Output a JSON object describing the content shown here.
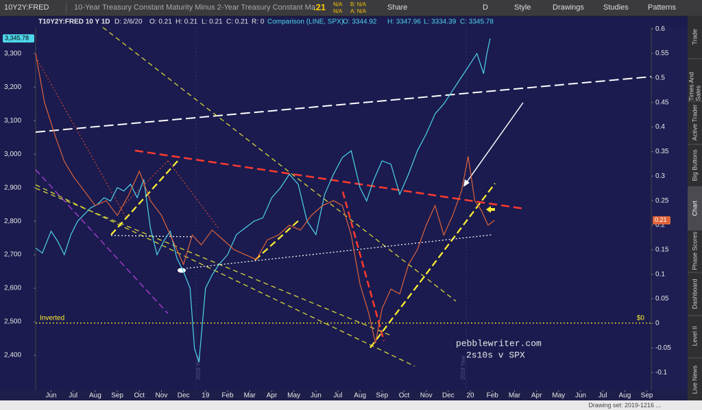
{
  "toolbar": {
    "symbol": "10Y2Y:FRED",
    "description": "10-Year Treasury Constant Maturity Minus 2-Year Treasury Constant Ma...",
    "last": ".21",
    "change1": "N/A",
    "change2": "N/A",
    "bid": "B: N/A",
    "ask": "A: N/A",
    "share": "Share",
    "period": "D",
    "style": "Style",
    "drawings": "Drawings",
    "studies": "Studies",
    "patterns": "Patterns"
  },
  "info_bar": {
    "symbol": "T10Y2Y:FRED 10 Y 1D",
    "date": "D: 2/6/20",
    "open": "O: 0.21",
    "high": "H: 0.21",
    "low": "L: 0.21",
    "close": "C: 0.21",
    "range": "R: 0",
    "comparison": "Comparison (LINE, SPX)",
    "cmp_open": "O: 3344.92",
    "cmp_high": "H: 3347.96",
    "cmp_low": "L: 3334.39",
    "cmp_close": "C: 3345.78"
  },
  "sidebar": [
    "Trade",
    "Times And Sales",
    "Active Trader",
    "Big Buttons",
    "Chart",
    "Phase Scores",
    "Dashboard",
    "Level II",
    "Live News"
  ],
  "status": "Drawing set: 2019-1216 ...",
  "chart_data": {
    "type": "line",
    "annotations": {
      "inverted": "Inverted",
      "zero": "$0",
      "credit": "pebblewriter.com",
      "subtitle": "2s10s v SPX",
      "year1": "2018 Year",
      "year2": "2019 Year"
    },
    "price_labels": {
      "spx": "3,345.78",
      "spread": "0.21"
    },
    "xlim": [
      -0.7,
      27.2
    ],
    "xticks": [
      {
        "value": 0,
        "label": "Jun"
      },
      {
        "value": 1,
        "label": "Jul"
      },
      {
        "value": 2,
        "label": "Aug"
      },
      {
        "value": 3,
        "label": "Sep"
      },
      {
        "value": 4,
        "label": "Oct"
      },
      {
        "value": 5,
        "label": "Nov"
      },
      {
        "value": 6,
        "label": "Dec"
      },
      {
        "value": 7,
        "label": "19"
      },
      {
        "value": 8,
        "label": "Feb"
      },
      {
        "value": 9,
        "label": "Mar"
      },
      {
        "value": 10,
        "label": "Apr"
      },
      {
        "value": 11,
        "label": "May"
      },
      {
        "value": 12,
        "label": "Jun"
      },
      {
        "value": 13,
        "label": "Jul"
      },
      {
        "value": 14,
        "label": "Aug"
      },
      {
        "value": 15,
        "label": "Sep"
      },
      {
        "value": 16,
        "label": "Oct"
      },
      {
        "value": 17,
        "label": "Nov"
      },
      {
        "value": 18,
        "label": "Dec"
      },
      {
        "value": 19,
        "label": "20"
      },
      {
        "value": 20,
        "label": "Feb"
      },
      {
        "value": 21,
        "label": "Mar"
      },
      {
        "value": 22,
        "label": "Apr"
      },
      {
        "value": 23,
        "label": "May"
      },
      {
        "value": 24,
        "label": "Jun"
      },
      {
        "value": 25,
        "label": "Jul"
      },
      {
        "value": 26,
        "label": "Aug"
      },
      {
        "value": 27,
        "label": "Sep"
      }
    ],
    "ylim": [
      2296,
      3378
    ],
    "yticks": [
      {
        "value": 2400,
        "label": "2,400"
      },
      {
        "value": 2500,
        "label": "2,500"
      },
      {
        "value": 2600,
        "label": "2,600"
      },
      {
        "value": 2700,
        "label": "2,700"
      },
      {
        "value": 2800,
        "label": "2,800"
      },
      {
        "value": 2900,
        "label": "2,900"
      },
      {
        "value": 3000,
        "label": "3,000"
      },
      {
        "value": 3100,
        "label": "3,100"
      },
      {
        "value": 3200,
        "label": "3,200"
      },
      {
        "value": 3300,
        "label": "3,300"
      }
    ],
    "y2lim": [
      -0.136,
      0.603
    ],
    "y2ticks": [
      -0.1,
      -0.05,
      0,
      0.05,
      0.1,
      0.15,
      0.2,
      0.25,
      0.3,
      0.35,
      0.4,
      0.45,
      0.5,
      0.55,
      0.6
    ],
    "series": [
      {
        "name": "SPX",
        "color": "#4fd6ea",
        "axis": "y",
        "x": [
          -0.7,
          -0.4,
          0,
          0.3,
          0.6,
          0.9,
          1.2,
          1.5,
          1.8,
          2.1,
          2.4,
          2.7,
          3.0,
          3.3,
          3.6,
          3.9,
          4.2,
          4.5,
          4.8,
          5.1,
          5.4,
          5.7,
          6.0,
          6.3,
          6.5,
          6.7,
          7.0,
          7.3,
          7.6,
          8.0,
          8.4,
          8.8,
          9.2,
          9.6,
          10.0,
          10.4,
          10.8,
          11.2,
          11.6,
          12.0,
          12.4,
          12.8,
          13.2,
          13.6,
          14.0,
          14.3,
          14.6,
          15.0,
          15.4,
          15.8,
          16.2,
          16.6,
          17.0,
          17.4,
          17.8,
          18.2,
          18.6,
          19.0,
          19.3,
          19.6,
          19.75,
          19.9
        ],
        "values": [
          2720,
          2705,
          2770,
          2740,
          2700,
          2760,
          2800,
          2820,
          2840,
          2850,
          2870,
          2860,
          2900,
          2890,
          2910,
          2870,
          2925,
          2780,
          2700,
          2740,
          2770,
          2690,
          2650,
          2600,
          2420,
          2380,
          2600,
          2640,
          2670,
          2700,
          2760,
          2780,
          2800,
          2810,
          2870,
          2900,
          2940,
          2910,
          2800,
          2760,
          2880,
          2940,
          2990,
          3010,
          2900,
          2860,
          2920,
          2980,
          2970,
          2880,
          2940,
          3010,
          3060,
          3120,
          3150,
          3190,
          3230,
          3270,
          3300,
          3240,
          3300,
          3345
        ]
      },
      {
        "name": "T10Y2Y:FRED",
        "color": "#e0643a",
        "axis": "y2",
        "x": [
          -0.7,
          -0.3,
          0.2,
          0.6,
          1.0,
          1.5,
          2.0,
          2.5,
          3.0,
          3.5,
          4.0,
          4.5,
          5.0,
          5.5,
          6.0,
          6.4,
          6.8,
          7.3,
          7.8,
          8.3,
          8.8,
          9.3,
          9.8,
          10.3,
          10.8,
          11.3,
          11.8,
          12.3,
          12.8,
          13.2,
          13.6,
          14.0,
          14.4,
          14.7,
          15.0,
          15.4,
          15.8,
          16.2,
          16.6,
          17.0,
          17.4,
          17.8,
          18.2,
          18.6,
          18.9,
          19.2,
          19.5,
          19.8,
          20.1
        ],
        "values": [
          0.55,
          0.45,
          0.38,
          0.33,
          0.3,
          0.27,
          0.24,
          0.25,
          0.22,
          0.26,
          0.31,
          0.25,
          0.22,
          0.17,
          0.12,
          0.18,
          0.16,
          0.19,
          0.17,
          0.15,
          0.14,
          0.13,
          0.17,
          0.18,
          0.2,
          0.19,
          0.22,
          0.24,
          0.25,
          0.24,
          0.18,
          0.08,
          0.02,
          -0.04,
          0.03,
          0.07,
          0.06,
          0.12,
          0.15,
          0.2,
          0.24,
          0.18,
          0.22,
          0.27,
          0.34,
          0.25,
          0.23,
          0.2,
          0.21
        ]
      }
    ]
  }
}
